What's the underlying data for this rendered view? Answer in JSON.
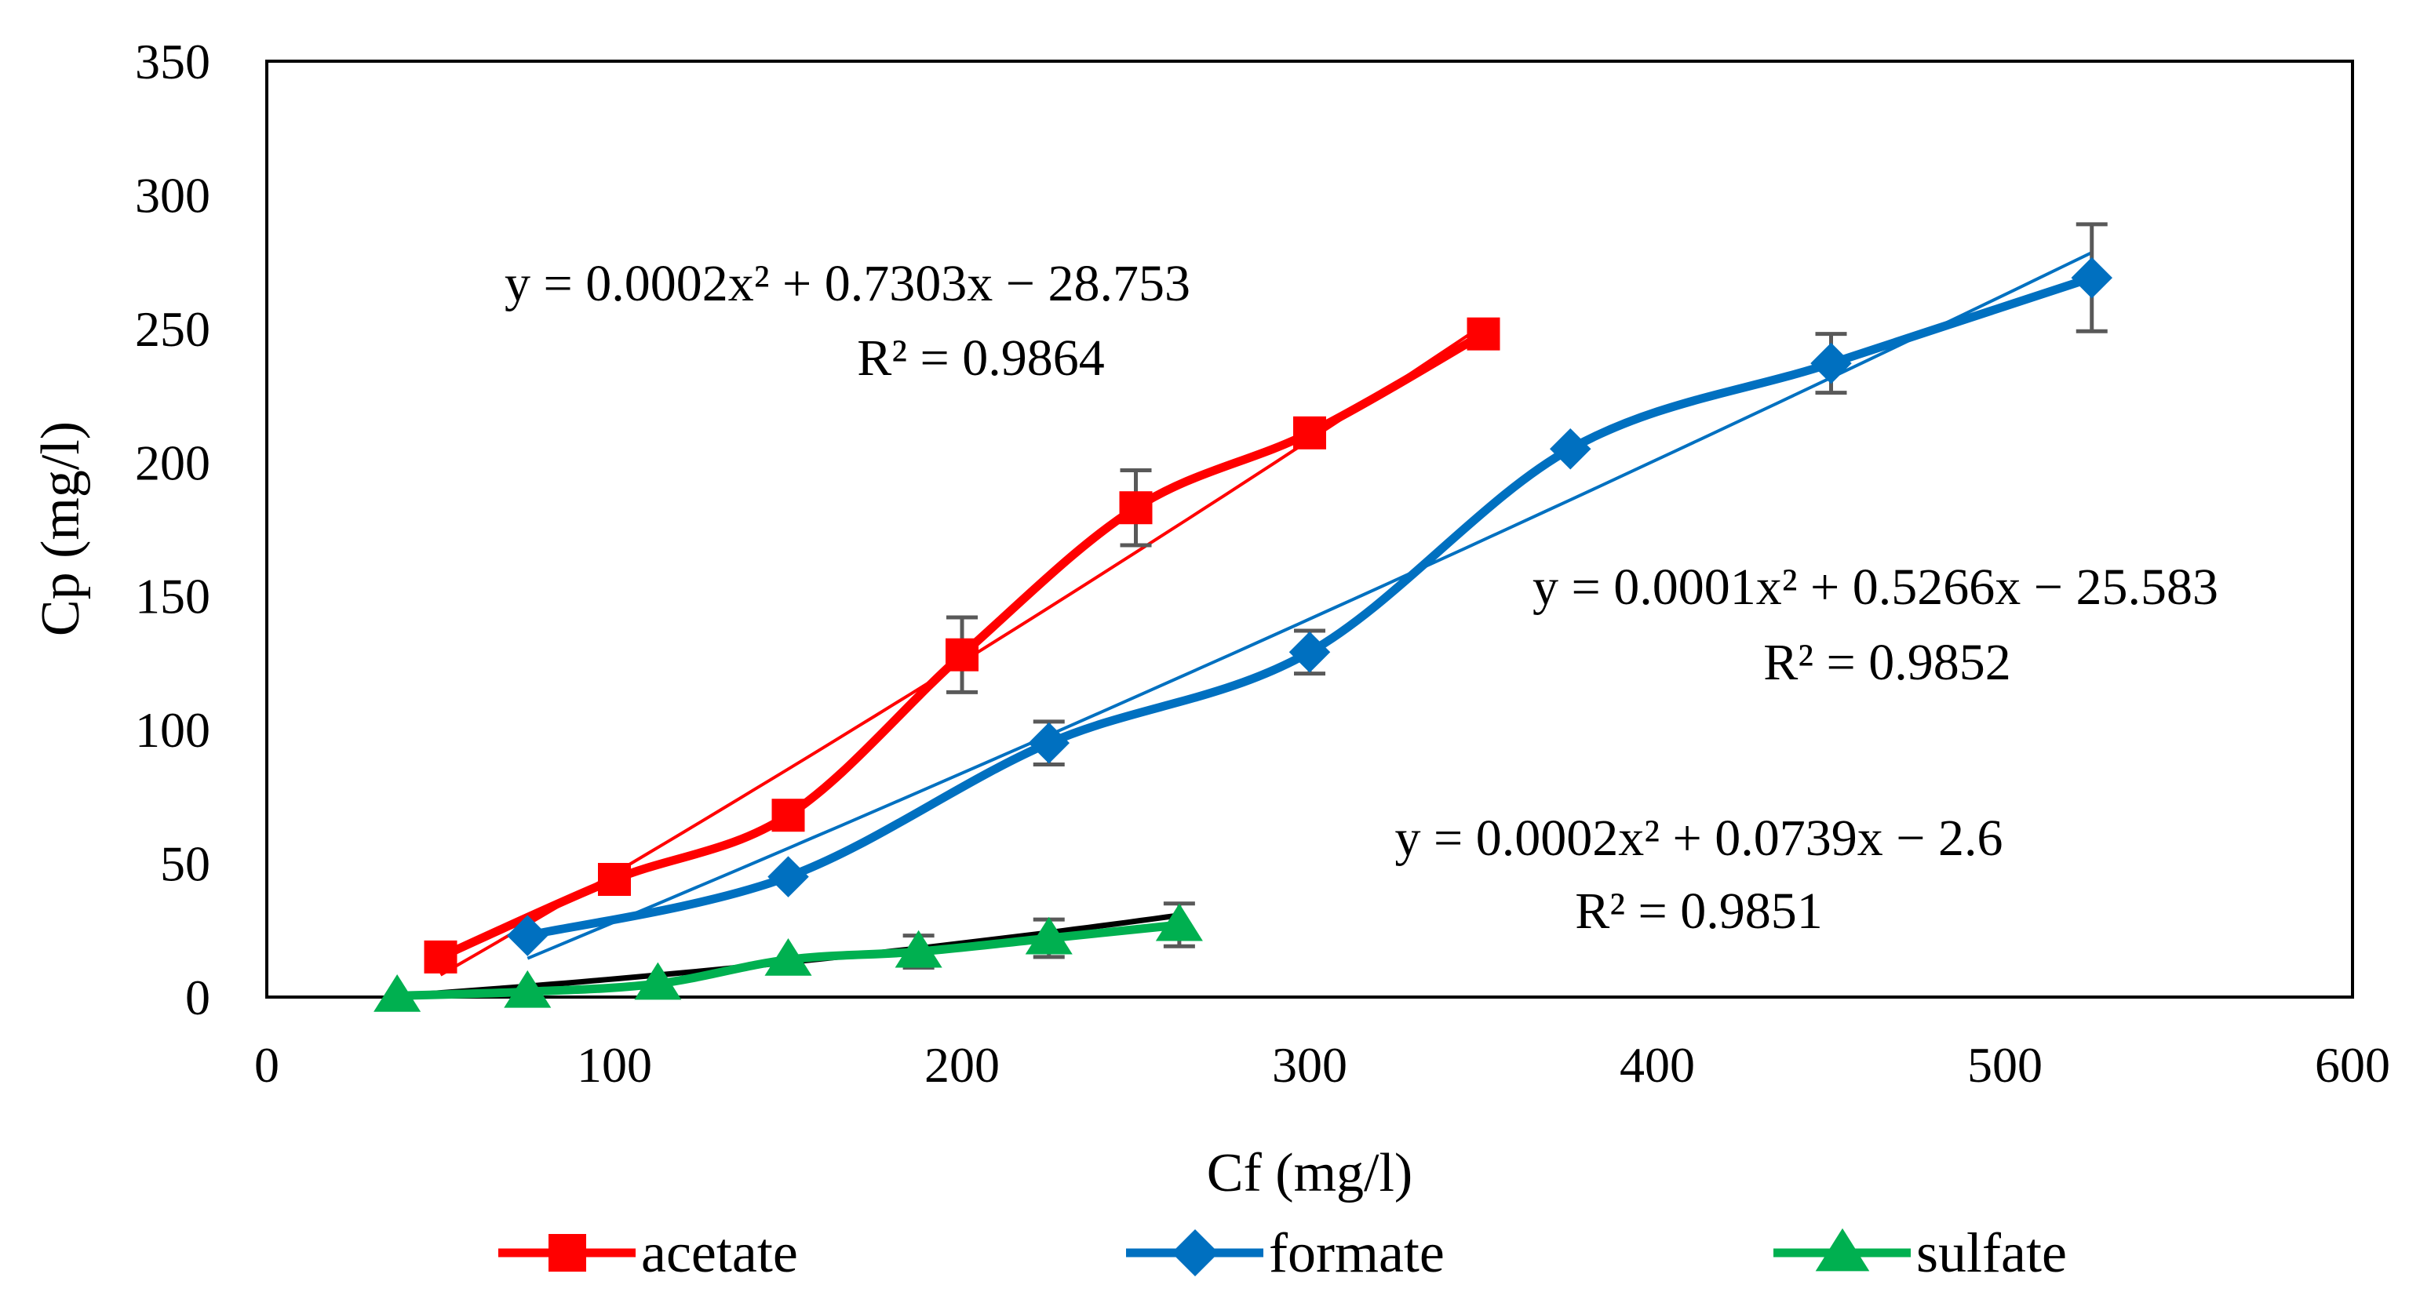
{
  "chart_data": {
    "type": "line",
    "xlabel": "Cf (mg/l)",
    "ylabel": "Cp (mg/l)",
    "xlim": [
      0,
      600
    ],
    "ylim": [
      0,
      350
    ],
    "xticks": [
      0,
      100,
      200,
      300,
      400,
      500,
      600
    ],
    "yticks": [
      0,
      50,
      100,
      150,
      200,
      250,
      300,
      350
    ],
    "grid": false,
    "legend_position": "bottom",
    "series": [
      {
        "name": "acetate",
        "color": "#ff0000",
        "marker": "square",
        "x": [
          50,
          100,
          150,
          200,
          250,
          300,
          350
        ],
        "y": [
          15,
          44,
          68,
          128,
          183,
          211,
          248
        ],
        "error": [
          0,
          0,
          0,
          14,
          14,
          0,
          0
        ],
        "trend": {
          "a": 0.0002,
          "b": 0.7303,
          "c": -28.753,
          "xrange": [
            50,
            350
          ]
        },
        "equation": "y = 0.0002x² + 0.7303x − 28.753",
        "r2": "R² = 0.9864"
      },
      {
        "name": "formate",
        "color": "#0070c0",
        "marker": "diamond",
        "x": [
          75,
          150,
          225,
          300,
          375,
          450,
          525
        ],
        "y": [
          23,
          45,
          95,
          129,
          205,
          237,
          269
        ],
        "error": [
          0,
          0,
          8,
          8,
          0,
          11,
          20
        ],
        "trend": {
          "a": 0.0001,
          "b": 0.5266,
          "c": -25.583,
          "xrange": [
            75,
            525
          ]
        },
        "equation": "y = 0.0001x² + 0.5266x − 25.583",
        "r2": "R² = 0.9852"
      },
      {
        "name": "sulfate",
        "color": "#00b050",
        "marker": "triangle",
        "x": [
          37.5,
          75,
          112.5,
          150,
          187.5,
          225,
          262.5
        ],
        "y": [
          0.5,
          2,
          5,
          14,
          17,
          22,
          27
        ],
        "error": [
          0,
          0,
          0,
          0,
          6,
          7,
          8
        ],
        "trend": {
          "a": 0.0002,
          "b": 0.0739,
          "c": -2.6,
          "xrange": [
            37.5,
            262.5
          ],
          "color": "#000000"
        },
        "equation": "y = 0.0002x² + 0.0739x − 2.6",
        "r2": "R² = 0.9851"
      }
    ]
  }
}
